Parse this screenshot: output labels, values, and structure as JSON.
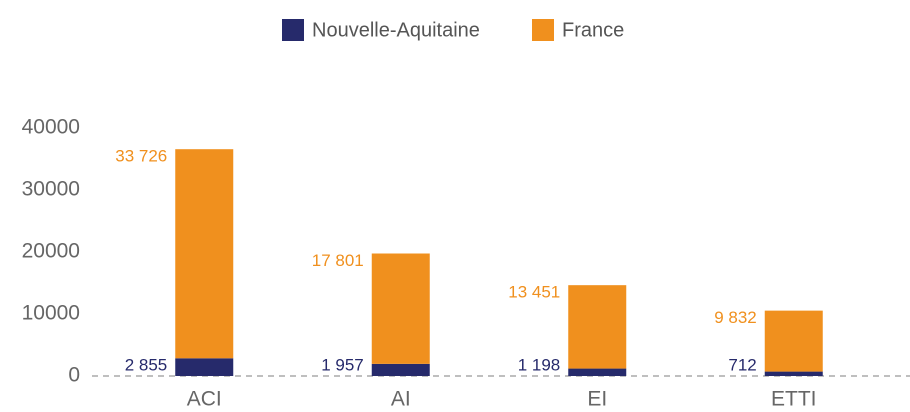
{
  "chart_data": {
    "type": "stacked_bar",
    "categories": [
      "ACI",
      "AI",
      "EI",
      "ETTI"
    ],
    "series": [
      {
        "name": "Nouvelle-Aquitaine",
        "color": "#262a6b",
        "values": [
          2855,
          1957,
          1198,
          712
        ],
        "value_labels": [
          "2 855",
          "1 957",
          "1 198",
          "712"
        ]
      },
      {
        "name": "France",
        "color": "#f0901e",
        "values": [
          33726,
          17801,
          13451,
          9832
        ],
        "value_labels": [
          "33 726",
          "17 801",
          "13 451",
          "9 832"
        ]
      }
    ],
    "ylim": [
      0,
      40000
    ],
    "yticks": [
      0,
      10000,
      20000,
      30000,
      40000
    ],
    "grid": false
  }
}
